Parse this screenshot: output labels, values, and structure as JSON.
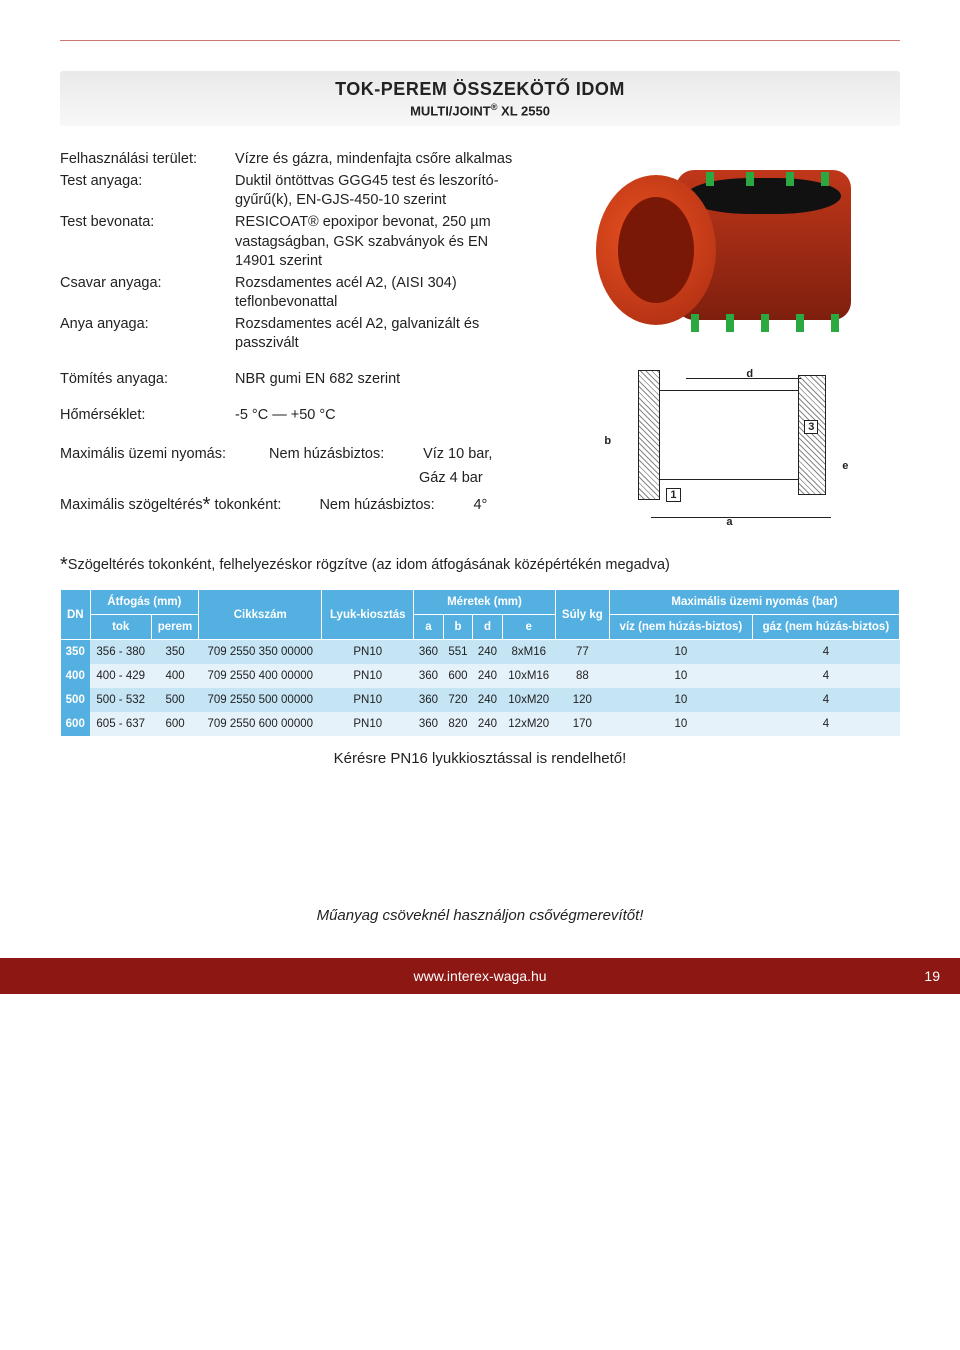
{
  "title": {
    "line1_a": "TOK-PEREM ÖSSZEKÖT",
    "line1_b": " IDOM",
    "line1_accent": "Ő",
    "line2_a": "MULTI/JOINT",
    "line2_reg": "®",
    "line2_b": " XL 2550"
  },
  "specs": [
    {
      "label": "Felhasználási terület:",
      "value": "Vízre és gázra, mindenfajta csőre alkalmas"
    },
    {
      "label": "Test anyaga:",
      "value": "Duktil öntöttvas GGG45 test és leszorító-gyűrű(k), EN-GJS-450-10 szerint"
    },
    {
      "label": "Test bevonata:",
      "value": "RESICOAT® epoxipor bevonat, 250 µm vastagságban, GSK szabványok és EN 14901 szerint"
    },
    {
      "label": "Csavar anyaga:",
      "value": "Rozsdamentes acél A2, (AISI 304) teflonbevonattal"
    },
    {
      "label": "Anya anyaga:",
      "value": "Rozsdamentes acél A2, galvanizált és passzivált"
    }
  ],
  "specs2": [
    {
      "label": "Tömítés anyaga:",
      "value": "NBR gumi EN 682 szerint"
    }
  ],
  "specs3": [
    {
      "label": "Hőmérséklet:",
      "value": "-5 °C — +50 °C"
    }
  ],
  "pressure": {
    "label": "Maximális üzemi nyomás:",
    "sub1_label": "Nem húzásbiztos:",
    "sub1_v1": "Víz 10 bar,",
    "sub1_v2": "Gáz 4 bar"
  },
  "deflection": {
    "label_a": "Maximális szögeltérés",
    "label_b": " tokonként:",
    "sub_label": "Nem húzásbiztos:",
    "sub_val": "4°"
  },
  "note": "Szögeltérés tokonként, felhelyezéskor rögzítve (az idom átfogásának középértékén megadva)",
  "table": {
    "head": {
      "dn": "DN",
      "atfogas": "Átfogás (mm)",
      "tok": "tok",
      "perem": "perem",
      "cikkszam": "Cikkszám",
      "lyuk": "Lyuk-kiosztás",
      "meretek": "Méretek (mm)",
      "a": "a",
      "b": "b",
      "d": "d",
      "e": "e",
      "suly": "Súly kg",
      "maxp": "Maximális üzemi nyomás (bar)",
      "viz": "víz (nem húzás-biztos)",
      "gaz": "gáz (nem húzás-biztos)"
    },
    "rows": [
      {
        "dn": "350",
        "tok": "356 - 380",
        "perem": "350",
        "cikk": "709 2550 350 00000",
        "lyuk": "PN10",
        "a": "360",
        "b": "551",
        "d": "240",
        "e": "8xM16",
        "suly": "77",
        "viz": "10",
        "gaz": "4"
      },
      {
        "dn": "400",
        "tok": "400 - 429",
        "perem": "400",
        "cikk": "709 2550 400 00000",
        "lyuk": "PN10",
        "a": "360",
        "b": "600",
        "d": "240",
        "e": "10xM16",
        "suly": "88",
        "viz": "10",
        "gaz": "4"
      },
      {
        "dn": "500",
        "tok": "500 - 532",
        "perem": "500",
        "cikk": "709 2550 500 00000",
        "lyuk": "PN10",
        "a": "360",
        "b": "720",
        "d": "240",
        "e": "10xM20",
        "suly": "120",
        "viz": "10",
        "gaz": "4"
      },
      {
        "dn": "600",
        "tok": "605 - 637",
        "perem": "600",
        "cikk": "709 2550 600 00000",
        "lyuk": "PN10",
        "a": "360",
        "b": "820",
        "d": "240",
        "e": "12xM20",
        "suly": "170",
        "viz": "10",
        "gaz": "4"
      }
    ]
  },
  "below_table": "Kérésre PN16 lyukkiosztással is rendelhető!",
  "footnote": "Műanyag csöveknél használjon csővégmerevítőt!",
  "footer_url": "www.interex-waga.hu",
  "page_num": "19",
  "drawing_labels": {
    "a": "a",
    "b": "b",
    "d": "d",
    "e": "e",
    "n1": "1",
    "n3": "3"
  }
}
